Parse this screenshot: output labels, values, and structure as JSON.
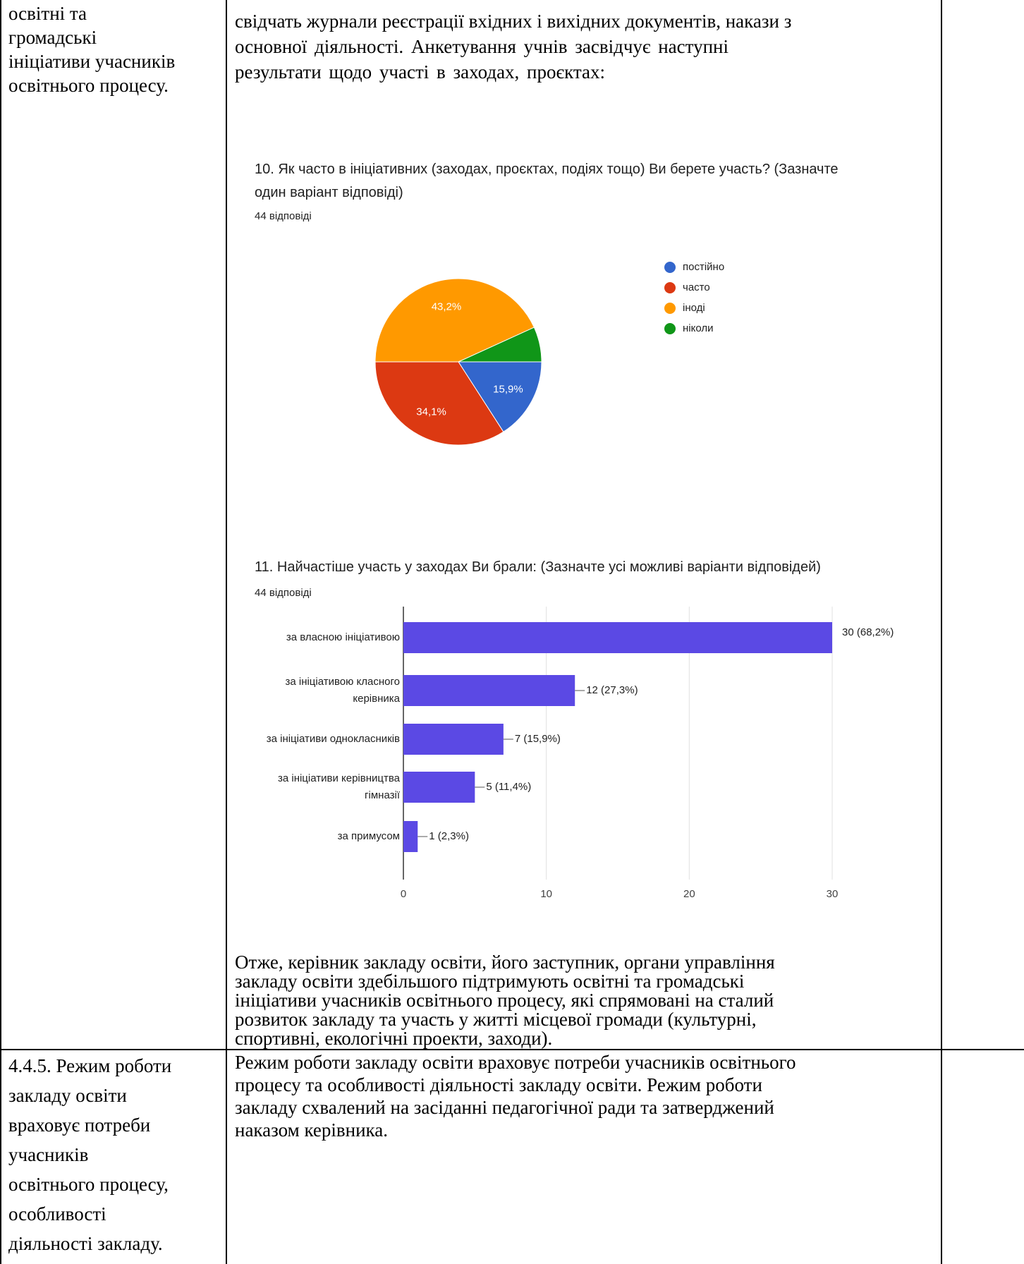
{
  "table": {
    "row1": {
      "left_lines": [
        "освітні та",
        "громадські",
        "ініціативи учасників",
        "освітнього процесу."
      ],
      "intro_lines": [
        "свідчать журнали реєстрації вхідних і вихідних документів, накази з",
        "основної діяльності. Анкетування   учнів   засвідчує   наступні",
        "результати   щодо участі в заходах, проєктах:"
      ],
      "conclusion_lines": [
        "Отже, керівник закладу освіти, його заступник, органи управління",
        "закладу освіти здебільшого підтримують   освітні та громадські",
        "ініціативи учасників освітнього процесу, які спрямовані на сталий",
        "розвиток закладу та участь у житті місцевої громади (культурні,",
        "спортивні, екологічні проекти, заходи)."
      ]
    },
    "row2": {
      "left_lines": [
        "4.4.5. Режим роботи",
        "закладу освіти",
        "враховує потреби",
        "учасників",
        "освітнього процесу,",
        "особливості",
        "діяльності закладу."
      ],
      "mid_lines": [
        "Режим роботи закладу освіти враховує потреби учасників освітнього",
        "процесу та особливості діяльності закладу освіти. Режим роботи",
        "закладу схвалений на засіданні педагогічної ради та затверджений",
        "наказом керівника."
      ]
    }
  },
  "question10": {
    "title_lines": [
      "10. Як часто в  ініціативних (заходах, проєктах, подіях тощо)  Ви берете участь? (Зазначте",
      "один варіант відповіді)"
    ],
    "responses": "44 відповіді"
  },
  "question11": {
    "title": "11. Найчастіше участь у заходах Ви брали: (Зазначте усі можливі варіанти відповідей)",
    "responses": "44 відповіді"
  },
  "chart_data": [
    {
      "type": "pie",
      "title": "10. Як часто в  ініціативних (заходах, проєктах, подіях тощо)  Ви берете участь? (Зазначте один варіант відповіді)",
      "categories": [
        "постійно",
        "часто",
        "іноді",
        "ніколи"
      ],
      "values": [
        15.9,
        34.1,
        43.2,
        6.8
      ],
      "slice_labels": [
        "15,9%",
        "34,1%",
        "43,2%",
        ""
      ],
      "colors": [
        "#3366cc",
        "#dc3912",
        "#ff9900",
        "#109618"
      ],
      "legend_position": "right"
    },
    {
      "type": "bar",
      "orientation": "horizontal",
      "title": "11. Найчастіше участь у заходах Ви брали: (Зазначте усі можливі варіанти відповідей)",
      "categories": [
        "за власною ініціативою",
        "за ініціативою класного керівника",
        "за ініціативи однокласників",
        "за ініціативи керівництва гімназії",
        "за примусом"
      ],
      "category_lines": [
        [
          "за власною ініціативою"
        ],
        [
          "за ініціативою класного",
          "керівника"
        ],
        [
          "за ініціативи однокласників"
        ],
        [
          "за ініціативи керівництва",
          "гімназії"
        ],
        [
          "за примусом"
        ]
      ],
      "values": [
        30,
        12,
        7,
        5,
        1
      ],
      "value_labels": [
        "30 (68,2%)",
        "12 (27,3%)",
        "7 (15,9%)",
        "5 (11,4%)",
        "1 (2,3%)"
      ],
      "xlim": [
        0,
        30
      ],
      "xticks": [
        0,
        10,
        20,
        30
      ],
      "bar_color": "#5b49e4",
      "grid": true
    }
  ]
}
